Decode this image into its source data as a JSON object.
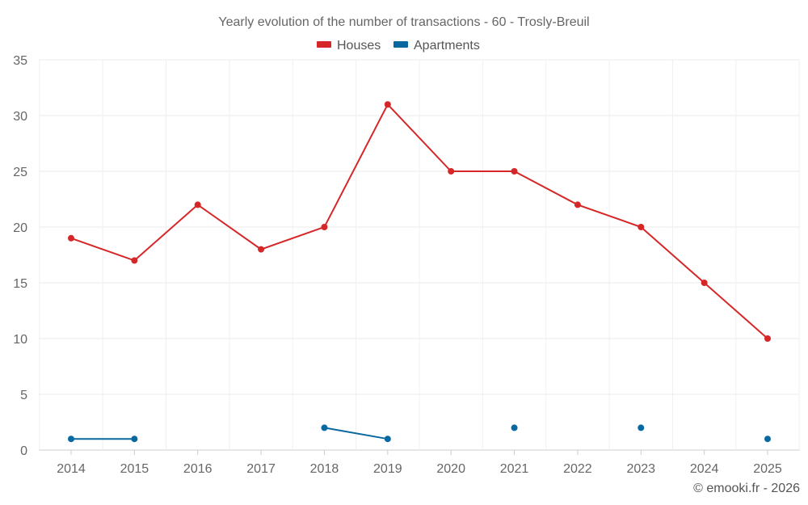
{
  "chart_data": {
    "type": "line",
    "title": "Yearly evolution of the number of transactions - 60 - Trosly-Breuil",
    "xlabel": "",
    "ylabel": "",
    "categories": [
      "2014",
      "2015",
      "2016",
      "2017",
      "2018",
      "2019",
      "2020",
      "2021",
      "2022",
      "2023",
      "2024",
      "2025"
    ],
    "ylim": [
      0,
      35
    ],
    "yticks": [
      0,
      5,
      10,
      15,
      20,
      25,
      30,
      35
    ],
    "grid": true,
    "legend_position": "top-center",
    "series": [
      {
        "name": "Houses",
        "color": "#d62728",
        "values": [
          19,
          17,
          22,
          18,
          20,
          31,
          25,
          25,
          22,
          20,
          15,
          10
        ]
      },
      {
        "name": "Apartments",
        "color": "#0868a0",
        "values": [
          1,
          1,
          null,
          null,
          2,
          1,
          null,
          2,
          null,
          2,
          null,
          1
        ]
      }
    ],
    "credit": "© emooki.fr - 2026"
  }
}
